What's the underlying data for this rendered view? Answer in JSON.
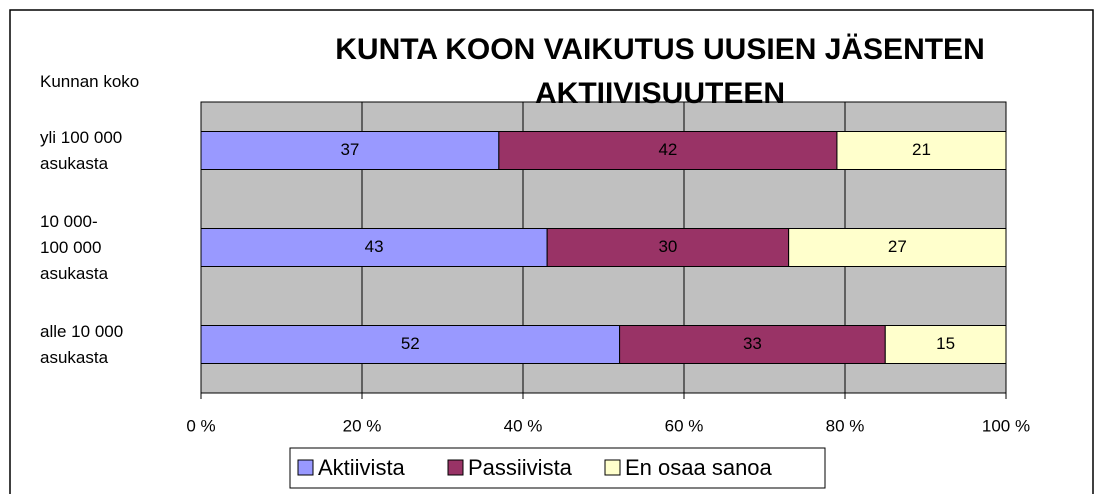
{
  "chart_data": {
    "type": "stacked_barh",
    "title": "KUNTA KOON VAIKUTUS UUSIEN JÄSENTEN AKTIIVISUUTEEN",
    "y_axis_label": "Kunnan koko",
    "categories": [
      "yli 100 000 asukasta",
      "10 000-100 000 asukasta",
      "alle 10 000 asukasta"
    ],
    "series": [
      {
        "name": "Aktiivista",
        "color": "#9999ff",
        "values": [
          37,
          43,
          52
        ]
      },
      {
        "name": "Passiivista",
        "color": "#993366",
        "values": [
          42,
          30,
          33
        ]
      },
      {
        "name": "En osaa sanoa",
        "color": "#ffffcc",
        "values": [
          21,
          27,
          15
        ]
      }
    ],
    "xlim": [
      0,
      100
    ],
    "xticks": [
      {
        "value": 0,
        "label": "0 %"
      },
      {
        "value": 20,
        "label": "20 %"
      },
      {
        "value": 40,
        "label": "40 %"
      },
      {
        "value": 60,
        "label": "60 %"
      },
      {
        "value": 80,
        "label": "80 %"
      },
      {
        "value": 100,
        "label": "100 %"
      }
    ],
    "grid": true,
    "plot_background": "#c0c0c0",
    "legend": "bottom"
  }
}
